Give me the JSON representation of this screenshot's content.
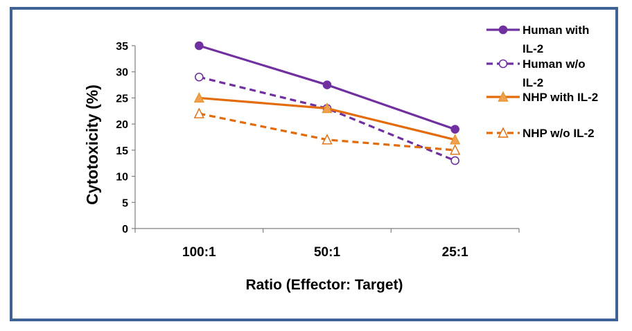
{
  "chart_data": {
    "type": "line",
    "categories": [
      "100:1",
      "50:1",
      "25:1"
    ],
    "xlabel": "Ratio (Effector: Target)",
    "ylabel": "Cytotoxicity (%)",
    "ylim": [
      0,
      35
    ],
    "yticks": [
      "0",
      "5",
      "10",
      "15",
      "20",
      "25",
      "30",
      "35"
    ],
    "grid": false,
    "legend": "right",
    "series": [
      {
        "name": "Human with IL-2",
        "name_lines": [
          "Human with",
          "IL-2"
        ],
        "values": [
          35,
          27.5,
          19
        ],
        "color": "#7030a0",
        "dashed": false,
        "marker": "circle",
        "filled": true
      },
      {
        "name": "Human w/o IL-2",
        "name_lines": [
          "Human w/o",
          "IL-2"
        ],
        "values": [
          29,
          23,
          13
        ],
        "color": "#7030a0",
        "dashed": true,
        "marker": "circle",
        "filled": false
      },
      {
        "name": "NHP with IL-2",
        "name_lines": [
          "NHP with IL-2"
        ],
        "values": [
          25,
          23,
          17
        ],
        "color": "#e36c0a",
        "dashed": false,
        "marker": "triangle",
        "filled": true
      },
      {
        "name": "NHP w/o IL-2",
        "name_lines": [
          "NHP w/o IL-2"
        ],
        "values": [
          22,
          17,
          15
        ],
        "color": "#e36c0a",
        "dashed": true,
        "marker": "triangle",
        "filled": false
      }
    ]
  }
}
